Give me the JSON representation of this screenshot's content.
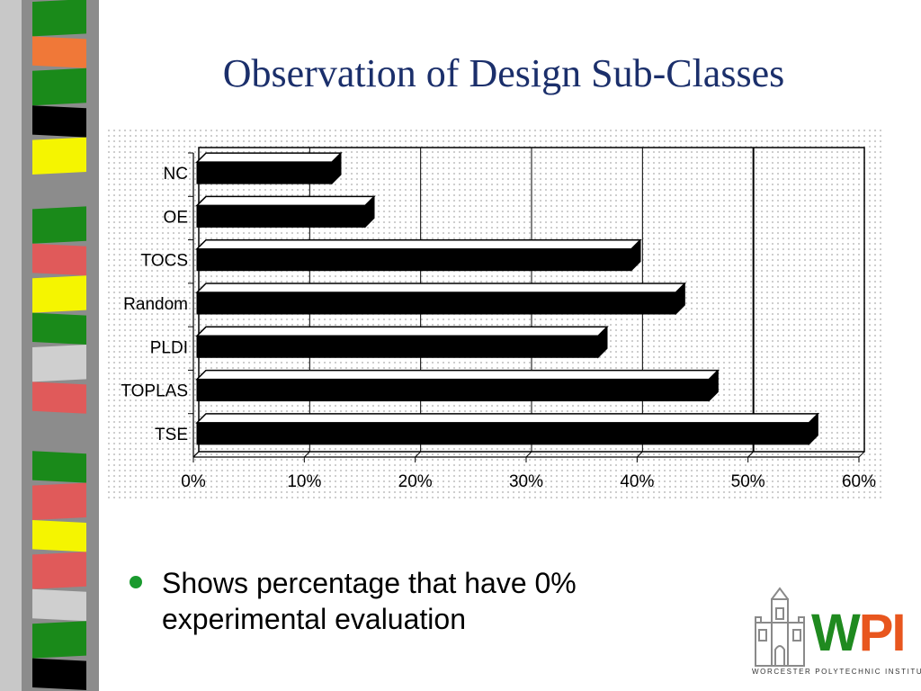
{
  "slide": {
    "title": "Observation of Design Sub-Classes",
    "bullet": "Shows percentage that have 0% experimental evaluation"
  },
  "logo": {
    "mark_w": "W",
    "mark_pi": "PI",
    "subtitle": "WORCESTER POLYTECHNIC INSTITUTE"
  },
  "colors": {
    "title": "#1b2f6b",
    "bar": "#000000",
    "bullet": "#1a9a2e",
    "logo_w": "#1f8a1f",
    "logo_pi": "#e8561e"
  },
  "stripe_colors": [
    "#1a8a1a",
    "#f07838",
    "#1a8a1a",
    "#000000",
    "#f5f500",
    "#8c8c8c",
    "#1a8a1a",
    "#e05a5a",
    "#f5f500",
    "#1a8a1a",
    "#cfcfcf",
    "#e05a5a",
    "#8c8c8c",
    "#1a8a1a",
    "#e05a5a",
    "#f5f500",
    "#e05a5a",
    "#cfcfcf",
    "#1a8a1a",
    "#000000"
  ],
  "chart_data": {
    "type": "bar",
    "orientation": "horizontal",
    "categories": [
      "NC",
      "OE",
      "TOCS",
      "Random",
      "PLDI",
      "TOPLAS",
      "TSE"
    ],
    "values": [
      12,
      15,
      39,
      43,
      36,
      46,
      55
    ],
    "x_ticks": [
      "0%",
      "10%",
      "20%",
      "30%",
      "40%",
      "50%",
      "60%"
    ],
    "xlim": [
      0,
      60
    ],
    "unit": "%",
    "grid": true,
    "style": "3d"
  }
}
